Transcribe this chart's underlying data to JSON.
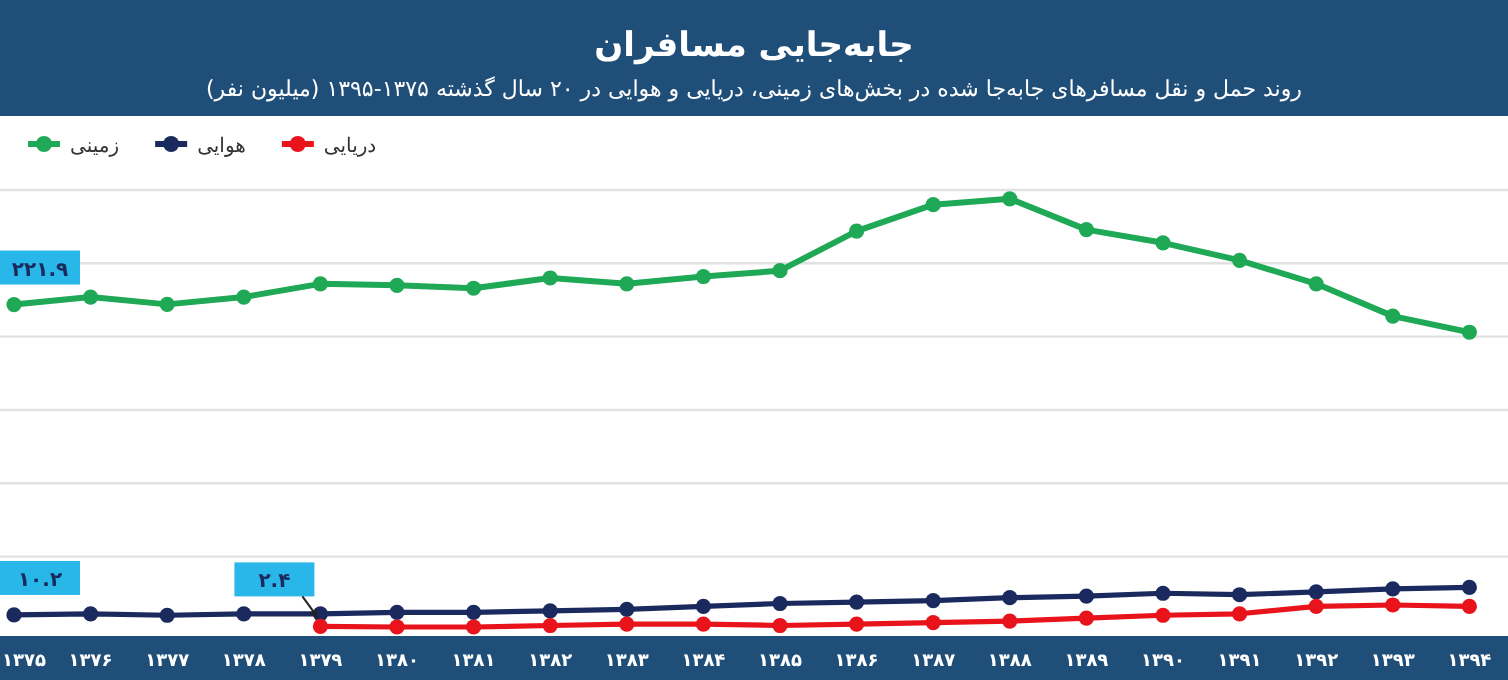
{
  "chart_data": {
    "type": "line",
    "title": "جابه‌جایی مسافران",
    "subtitle": "روند حمل و نقل  مسافرهای جابه‌جا شده در بخش‌های زمینی، دریایی و هوایی در ۲۰ سال گذشته ۱۳۷۵-۱۳۹۵ (میلیون نفر)",
    "categories": [
      "۱۳۷۵",
      "۱۳۷۶",
      "۱۳۷۷",
      "۱۳۷۸",
      "۱۳۷۹",
      "۱۳۸۰",
      "۱۳۸۱",
      "۱۳۸۲",
      "۱۳۸۳",
      "۱۳۸۴",
      "۱۳۸۵",
      "۱۳۸۶",
      "۱۳۸۷",
      "۱۳۸۸",
      "۱۳۸۹",
      "۱۳۹۰",
      "۱۳۹۱",
      "۱۳۹۲",
      "۱۳۹۳",
      "۱۳۹۴"
    ],
    "yticks": [
      {
        "value": 50,
        "label": null
      },
      {
        "value": 100,
        "label": null
      },
      {
        "value": 150,
        "label": null
      },
      {
        "value": 200,
        "label": null
      },
      {
        "value": 250,
        "label": null
      },
      {
        "value": 300,
        "label": null
      }
    ],
    "tick_labels": "x",
    "legend": "top left",
    "marker": "circle",
    "grid": "y",
    "series": [
      {
        "name": "زمینی",
        "color": "#1fa855",
        "values": [
          221.9,
          227,
          222,
          227,
          236,
          235,
          233,
          240,
          236,
          241,
          245,
          272,
          290,
          294,
          273,
          264,
          252,
          236,
          214,
          203
        ],
        "value_labels": [
          "۲۲۱.۹",
          null,
          null,
          null,
          null,
          null,
          null,
          null,
          null,
          null,
          null,
          null,
          null,
          null,
          null,
          null,
          null,
          null,
          null,
          null
        ]
      },
      {
        "name": "هوایی",
        "color": "#1b2a5e",
        "values": [
          10.2,
          11,
          10,
          11,
          11,
          12,
          12,
          13,
          14,
          16,
          18,
          19,
          20,
          22,
          23,
          25,
          24,
          26,
          28,
          29
        ],
        "value_labels": [
          "۱۰.۲",
          null,
          null,
          null,
          null,
          null,
          null,
          null,
          null,
          null,
          null,
          null,
          null,
          null,
          null,
          null,
          null,
          null,
          null,
          null
        ]
      },
      {
        "name": "دریایی",
        "color": "#e8131b",
        "values": [
          null,
          null,
          null,
          null,
          2.4,
          2,
          2,
          3,
          4,
          4,
          3,
          4,
          5,
          6,
          8,
          10,
          11,
          16,
          17,
          16
        ],
        "value_labels": [
          null,
          null,
          null,
          null,
          "۲.۴",
          null,
          null,
          null,
          null,
          null,
          null,
          null,
          null,
          null,
          null,
          null,
          null,
          null,
          null,
          null
        ]
      }
    ]
  }
}
